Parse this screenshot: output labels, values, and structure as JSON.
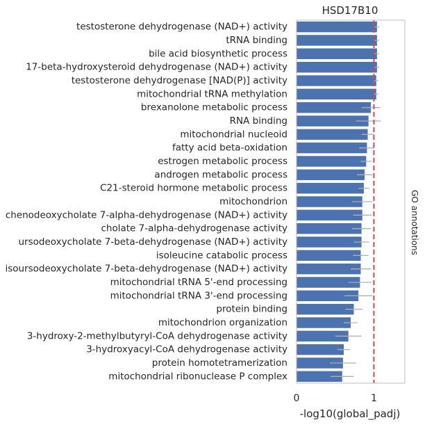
{
  "chart_data": {
    "type": "bar",
    "orientation": "horizontal",
    "title": "HSD17B10",
    "xlabel": "-log10(global_padj)",
    "ylabel": "",
    "side_label": "GO annotations",
    "xlim": [
      0,
      1.4
    ],
    "xticks": [
      0,
      1
    ],
    "xtick_labels": [
      "0",
      "1"
    ],
    "reference_line": {
      "x": 1.0,
      "style": "dashed",
      "color": "#c44e52"
    },
    "bar_color": "#4c72b0",
    "error_bar_color": "#b0b0b0",
    "grid": false,
    "categories": [
      "testosterone dehydrogenase (NAD+) activity",
      "tRNA binding",
      "bile acid biosynthetic process",
      "17-beta-hydroxysteroid dehydrogenase (NAD+) activity",
      "testosterone dehydrogenase [NAD(P)] activity",
      "mitochondrial tRNA methylation",
      "brexanolone metabolic process",
      "RNA binding",
      "mitochondrial nucleoid",
      "fatty acid beta-oxidation",
      "estrogen metabolic process",
      "androgen metabolic process",
      "C21-steroid hormone metabolic process",
      "mitochondrion",
      "chenodeoxycholate 7-alpha-dehydrogenase (NAD+) activity",
      "cholate 7-alpha-dehydrogenase activity",
      "ursodeoxycholate 7-beta-dehydrogenase (NAD+) activity",
      "isoleucine catabolic process",
      "isoursodeoxycholate 7-beta-dehydrogenase (NAD+) activity",
      "mitochondrial tRNA 5'-end processing",
      "mitochondrial tRNA 3'-end processing",
      "protein binding",
      "mitochondrion organization",
      "3-hydroxy-2-methylbutyryl-CoA dehydrogenase activity",
      "3-hydroxyacyl-CoA dehydrogenase activity",
      "protein homotetramerization",
      "mitochondrial ribonuclease P complex"
    ],
    "values": [
      1.04,
      1.04,
      1.04,
      1.04,
      1.03,
      1.03,
      0.96,
      0.93,
      0.92,
      0.91,
      0.9,
      0.88,
      0.87,
      0.85,
      0.85,
      0.84,
      0.84,
      0.83,
      0.83,
      0.82,
      0.8,
      0.74,
      0.7,
      0.67,
      0.61,
      0.6,
      0.59
    ],
    "errors": [
      0.03,
      0.03,
      0.03,
      0.03,
      0.03,
      0.03,
      0.12,
      0.16,
      0.08,
      0.1,
      0.07,
      0.1,
      0.07,
      0.13,
      0.12,
      0.12,
      0.1,
      0.1,
      0.13,
      0.15,
      0.18,
      0.11,
      0.09,
      0.17,
      0.08,
      0.17,
      0.15
    ]
  }
}
